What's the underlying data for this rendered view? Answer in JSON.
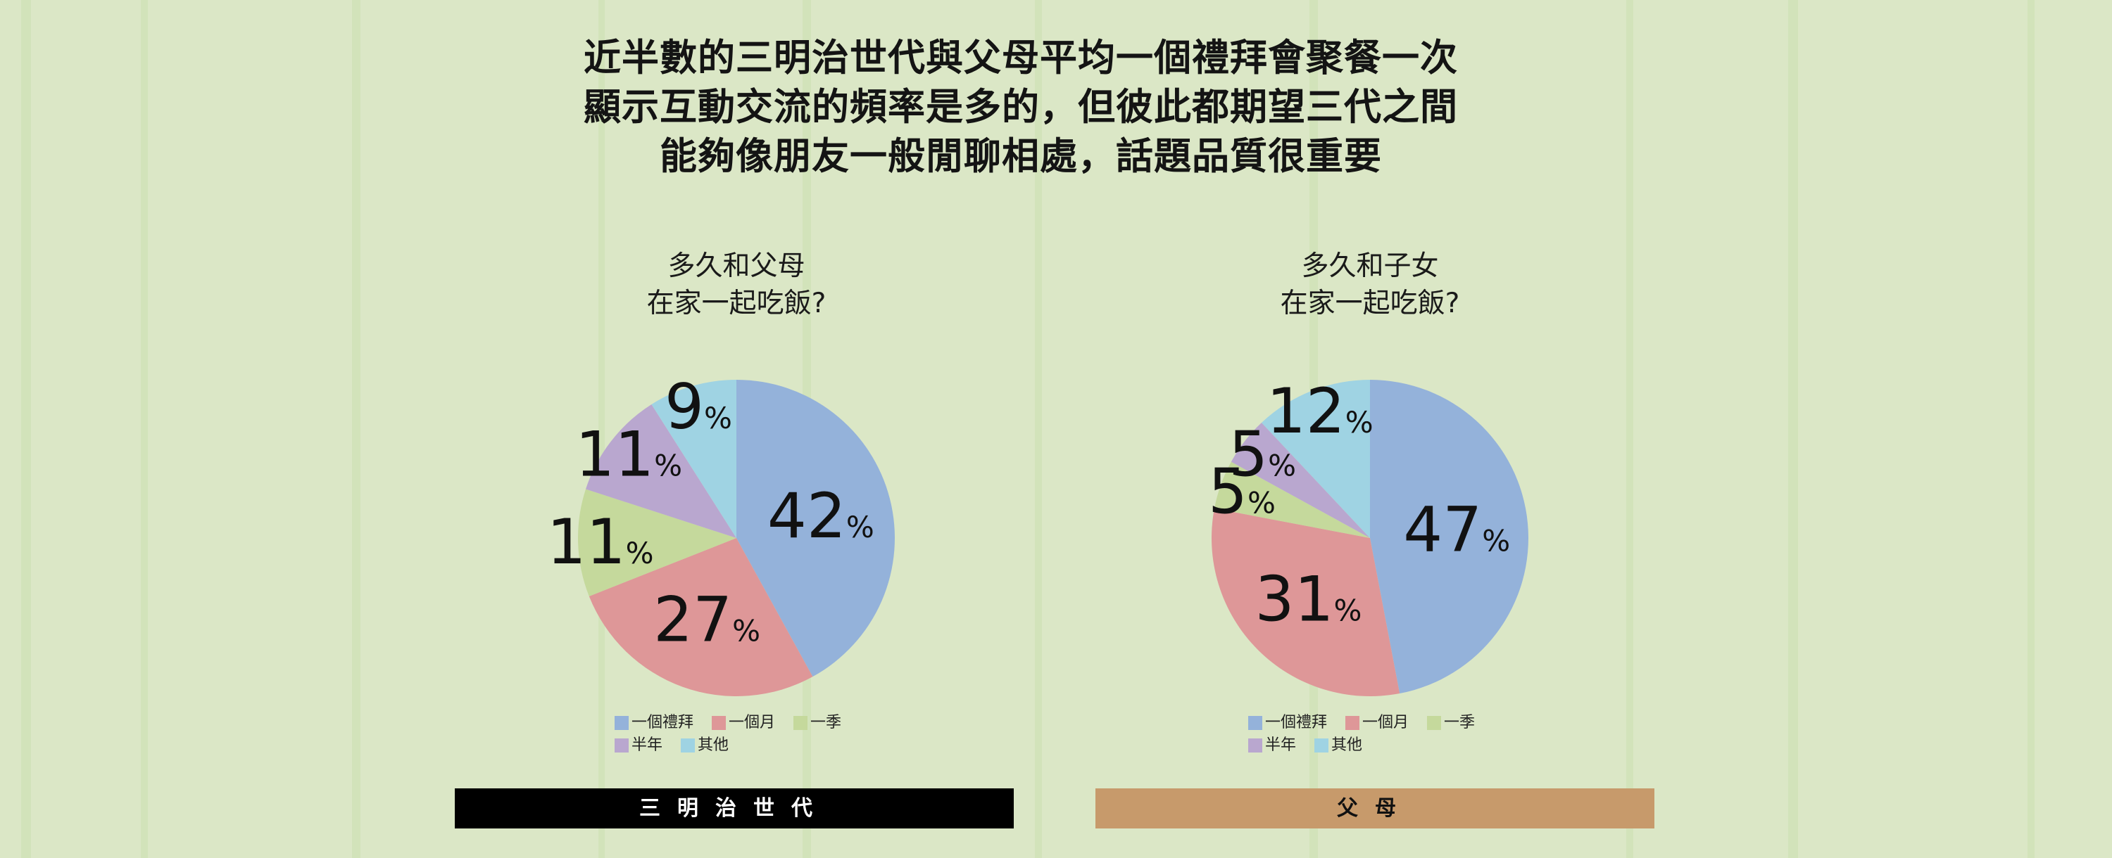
{
  "headline": {
    "line1": "近半數的三明治世代與父母平均一個禮拜會聚餐一次",
    "line2": "顯示互動交流的頻率是多的，但彼此都期望三代之間",
    "line3": "能夠像朋友一般閒聊相處，話題品質很重要"
  },
  "colors": {
    "background": "#dbe7c6",
    "weekly": "#94b2da",
    "monthly": "#de9798",
    "quarterly": "#c5d99c",
    "half_year": "#b9a7cf",
    "other": "#9fd3e3",
    "bar_left": "#000000",
    "bar_right": "#c79a6b"
  },
  "legend_labels": [
    "一個禮拜",
    "一個月",
    "一季",
    "半年",
    "其他"
  ],
  "percent_sign": "%",
  "chart_data": [
    {
      "type": "pie",
      "title_line1": "多久和父母",
      "title_line2": "在家一起吃飯?",
      "categories": [
        "一個禮拜",
        "一個月",
        "一季",
        "半年",
        "其他"
      ],
      "values": [
        42,
        27,
        11,
        11,
        9
      ],
      "unit": "%",
      "footer": "三明治世代"
    },
    {
      "type": "pie",
      "title_line1": "多久和子女",
      "title_line2": "在家一起吃飯?",
      "categories": [
        "一個禮拜",
        "一個月",
        "一季",
        "半年",
        "其他"
      ],
      "values": [
        47,
        31,
        5,
        5,
        12
      ],
      "unit": "%",
      "footer": "父母"
    }
  ]
}
